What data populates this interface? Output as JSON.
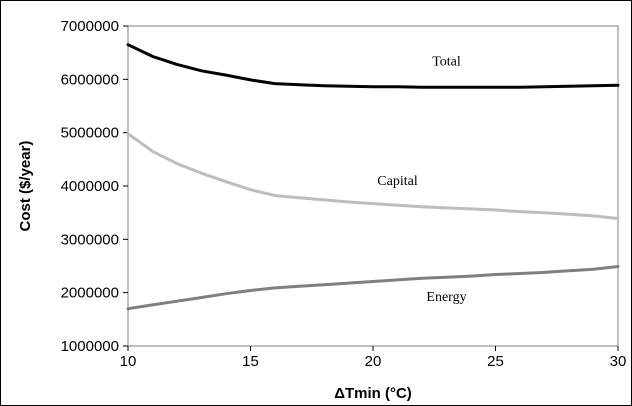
{
  "chart_data": {
    "type": "line",
    "title": "",
    "xlabel": "ΔTmin (°C)",
    "ylabel": "Cost ($/year)",
    "xlim": [
      10,
      30
    ],
    "ylim": [
      1000000,
      7000000
    ],
    "xticks": [
      "10",
      "15",
      "20",
      "25",
      "30"
    ],
    "yticks": [
      "1000000",
      "2000000",
      "3000000",
      "4000000",
      "5000000",
      "6000000",
      "7000000"
    ],
    "grid": false,
    "legend": "none",
    "series": [
      {
        "name": "Total",
        "color": "#000000",
        "x": [
          10,
          11,
          12,
          13,
          14,
          15,
          16,
          17,
          18,
          19,
          20,
          21,
          22,
          23,
          24,
          25,
          26,
          27,
          28,
          29,
          30
        ],
        "y": [
          6650000,
          6430000,
          6280000,
          6160000,
          6080000,
          5990000,
          5920000,
          5900000,
          5880000,
          5870000,
          5860000,
          5860000,
          5850000,
          5850000,
          5850000,
          5850000,
          5850000,
          5860000,
          5870000,
          5880000,
          5890000
        ]
      },
      {
        "name": "Capital",
        "color": "#bdbdbd",
        "x": [
          10,
          11,
          12,
          13,
          14,
          15,
          16,
          17,
          18,
          19,
          20,
          21,
          22,
          23,
          24,
          25,
          26,
          27,
          28,
          29,
          30
        ],
        "y": [
          4980000,
          4650000,
          4420000,
          4240000,
          4080000,
          3930000,
          3820000,
          3780000,
          3740000,
          3700000,
          3670000,
          3640000,
          3610000,
          3590000,
          3570000,
          3550000,
          3520000,
          3500000,
          3470000,
          3440000,
          3390000
        ]
      },
      {
        "name": "Energy",
        "color": "#7f7f7f",
        "x": [
          10,
          11,
          12,
          13,
          14,
          15,
          16,
          17,
          18,
          19,
          20,
          21,
          22,
          23,
          24,
          25,
          26,
          27,
          28,
          29,
          30
        ],
        "y": [
          1700000,
          1770000,
          1840000,
          1910000,
          1980000,
          2040000,
          2090000,
          2120000,
          2150000,
          2180000,
          2210000,
          2240000,
          2270000,
          2290000,
          2310000,
          2340000,
          2360000,
          2380000,
          2410000,
          2440000,
          2490000
        ]
      }
    ]
  }
}
